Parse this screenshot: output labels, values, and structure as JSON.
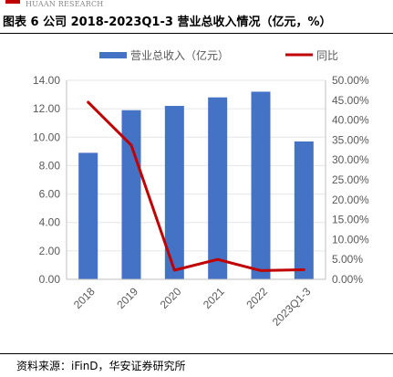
{
  "header": {
    "brand_text": "HUAAN RESEARCH",
    "brand_color": "#c00000",
    "title": "图表 6 公司 2018-2023Q1-3 营业总收入情况（亿元，%）"
  },
  "footer": {
    "source": "资料来源：iFinD，华安证券研究所"
  },
  "chart_data": {
    "type": "bar+line",
    "categories": [
      "2018",
      "2019",
      "2020",
      "2021",
      "2022",
      "2023Q1-3"
    ],
    "series": [
      {
        "name": "营业总收入（亿元）",
        "type": "bar",
        "axis": "left",
        "color": "#4472c4",
        "values": [
          8.9,
          11.9,
          12.2,
          12.8,
          13.2,
          9.7
        ]
      },
      {
        "name": "同比",
        "type": "line",
        "axis": "right",
        "color": "#c00000",
        "values": [
          44.5,
          33.7,
          2.3,
          5.0,
          2.2,
          2.4
        ]
      }
    ],
    "y_left": {
      "min": 0,
      "max": 14,
      "ticks": [
        "0.00",
        "2.00",
        "4.00",
        "6.00",
        "8.00",
        "10.00",
        "12.00",
        "14.00"
      ]
    },
    "y_right": {
      "min": 0,
      "max": 50,
      "ticks": [
        "0.00%",
        "5.00%",
        "10.00%",
        "15.00%",
        "20.00%",
        "25.00%",
        "30.00%",
        "35.00%",
        "40.00%",
        "45.00%",
        "50.00%"
      ]
    },
    "title": "",
    "xlabel": "",
    "ylabel": "",
    "grid": true,
    "legend_position": "top",
    "axis_color": "#bfbfbf",
    "label_color": "#595959"
  }
}
